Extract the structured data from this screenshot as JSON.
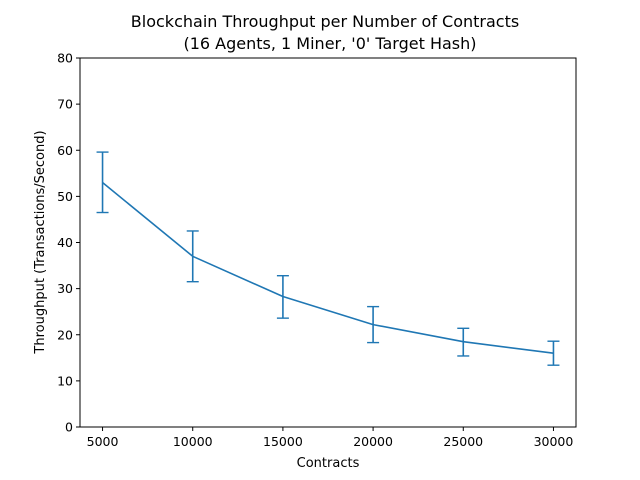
{
  "chart_data": {
    "type": "line",
    "title": "Blockchain Throughput per Number of Contracts",
    "subtitle": "(16 Agents, 1 Miner, '0' Target Hash)",
    "xlabel": "Contracts",
    "ylabel": "Throughput (Transactions/Second)",
    "xlim": [
      3750,
      31250
    ],
    "ylim": [
      0,
      80
    ],
    "xticks": [
      5000,
      10000,
      15000,
      20000,
      25000,
      30000
    ],
    "yticks": [
      0,
      10,
      20,
      30,
      40,
      50,
      60,
      70,
      80
    ],
    "grid": false,
    "series": [
      {
        "color": "#1f77b4",
        "x": [
          5000,
          10000,
          15000,
          20000,
          25000,
          30000
        ],
        "y": [
          53.0,
          37.0,
          28.3,
          22.2,
          18.5,
          16.0
        ],
        "err_low": [
          46.5,
          31.5,
          23.6,
          18.3,
          15.4,
          13.4
        ],
        "err_high": [
          59.6,
          42.5,
          32.8,
          26.1,
          21.4,
          18.6
        ]
      }
    ]
  }
}
